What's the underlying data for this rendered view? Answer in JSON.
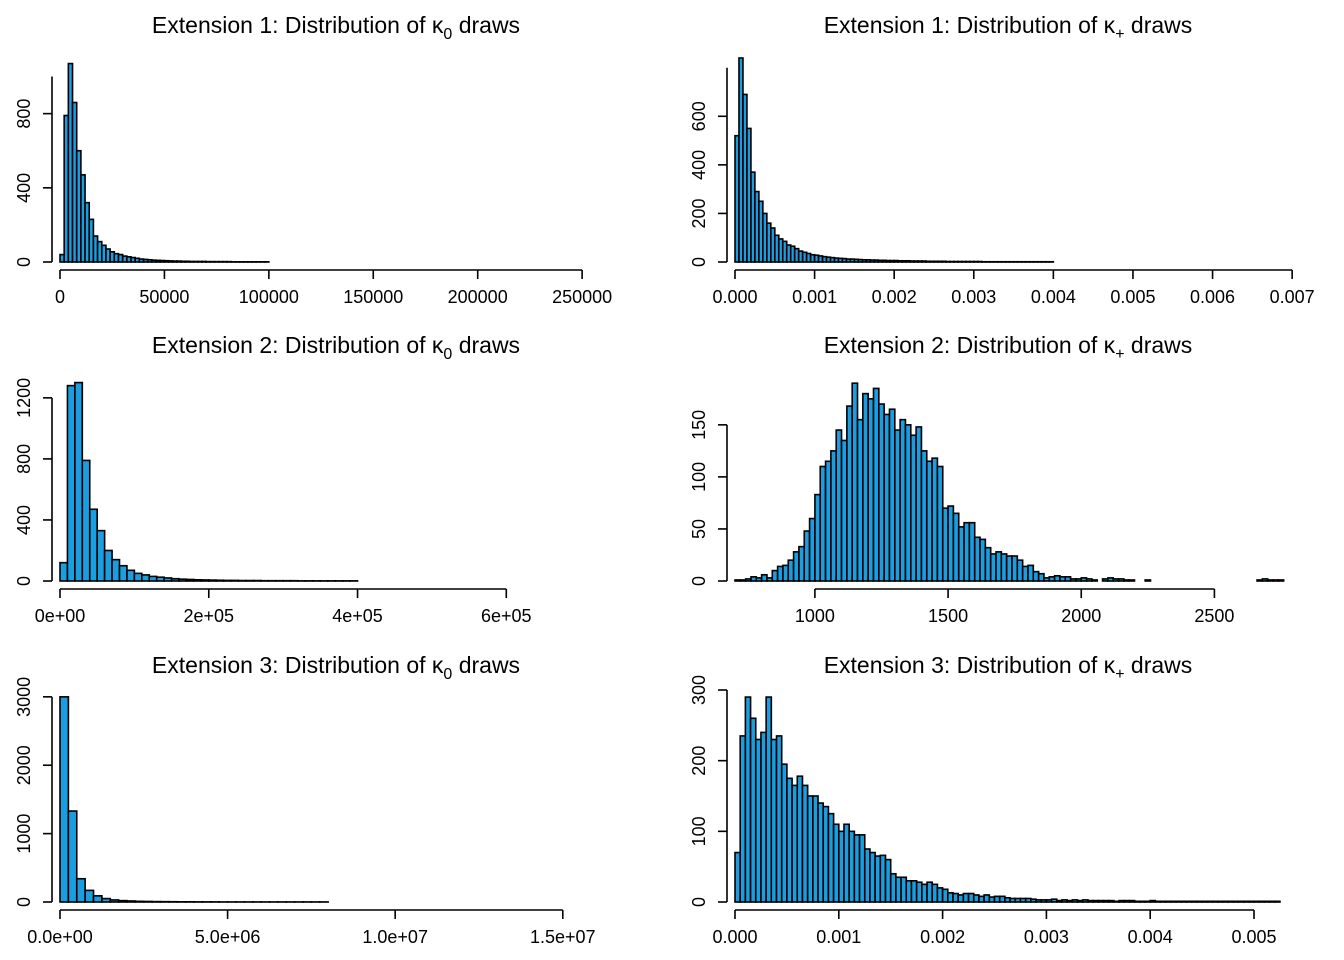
{
  "chart_data": [
    {
      "type": "bar",
      "title": "Extension 1: Distribution of κ0 draws",
      "title_main": "Extension 1: Distribution of κ",
      "title_sub": "0",
      "title_tail": " draws",
      "xlim": [
        0,
        260000
      ],
      "ylim": [
        0,
        1100
      ],
      "bin_start": 0,
      "bin_width": 2000,
      "counts": [
        40,
        790,
        1070,
        860,
        600,
        470,
        320,
        230,
        140,
        110,
        90,
        70,
        55,
        45,
        40,
        32,
        28,
        24,
        20,
        16,
        14,
        12,
        10,
        9,
        8,
        7,
        6,
        5,
        5,
        4,
        4,
        3,
        3,
        3,
        3,
        2,
        2,
        2,
        2,
        2,
        2,
        1,
        1,
        1,
        1,
        1,
        1,
        1,
        1,
        1
      ],
      "xticks": [
        0,
        50000,
        100000,
        150000,
        200000,
        250000
      ],
      "xtick_labels": [
        "0",
        "50000",
        "100000",
        "150000",
        "200000",
        "250000"
      ],
      "yticks": [
        0,
        400,
        800
      ],
      "ytick_labels": [
        "0",
        "400",
        "800"
      ],
      "yaxis_top": 1000
    },
    {
      "type": "bar",
      "title": "Extension 1: Distribution of κ+ draws",
      "title_main": "Extension 1: Distribution of κ",
      "title_sub": "+",
      "title_tail": " draws",
      "xlim": [
        0,
        0.00686
      ],
      "ylim": [
        0,
        840
      ],
      "bin_start": 0,
      "bin_width": 5e-05,
      "counts": [
        520,
        840,
        690,
        550,
        370,
        290,
        250,
        200,
        160,
        140,
        110,
        95,
        85,
        70,
        65,
        55,
        45,
        40,
        35,
        30,
        28,
        25,
        22,
        20,
        18,
        16,
        15,
        14,
        12,
        12,
        11,
        10,
        9,
        9,
        8,
        8,
        7,
        7,
        6,
        6,
        6,
        5,
        5,
        5,
        4,
        4,
        4,
        4,
        3,
        3,
        3,
        3,
        3,
        2,
        2,
        2,
        2,
        2,
        2,
        2,
        2,
        2,
        1,
        1,
        1,
        1,
        1,
        1,
        1,
        1,
        1,
        1,
        1,
        1,
        1,
        1,
        1,
        1,
        1,
        1
      ],
      "xticks": [
        0,
        0.001,
        0.002,
        0.003,
        0.004,
        0.005,
        0.006,
        0.007
      ],
      "xtick_labels": [
        "0.000",
        "0.001",
        "0.002",
        "0.003",
        "0.004",
        "0.005",
        "0.006",
        "0.007"
      ],
      "yticks": [
        0,
        200,
        400,
        600
      ],
      "ytick_labels": [
        "0",
        "200",
        "400",
        "600"
      ],
      "yaxis_top": 800
    },
    {
      "type": "bar",
      "title": "Extension 2: Distribution of κ0 draws",
      "title_main": "Extension 2: Distribution of κ",
      "title_sub": "0",
      "title_tail": " draws",
      "xlim": [
        0,
        730000
      ],
      "ylim": [
        0,
        1330
      ],
      "bin_start": 0,
      "bin_width": 10000,
      "counts": [
        120,
        1280,
        1300,
        790,
        470,
        330,
        200,
        140,
        100,
        70,
        50,
        40,
        30,
        25,
        20,
        15,
        12,
        10,
        8,
        7,
        6,
        5,
        4,
        4,
        3,
        3,
        3,
        2,
        2,
        2,
        2,
        2,
        1,
        1,
        1,
        1,
        1,
        1,
        1,
        1
      ],
      "xticks": [
        0,
        200000,
        400000,
        600000
      ],
      "xtick_labels": [
        "0e+00",
        "2e+05",
        "4e+05",
        "6e+05"
      ],
      "yticks": [
        0,
        400,
        800,
        1200
      ],
      "ytick_labels": [
        "0",
        "400",
        "800",
        "1200"
      ],
      "yaxis_top": 1200
    },
    {
      "type": "bar",
      "title": "Extension 2: Distribution of κ+ draws",
      "title_main": "Extension 2: Distribution of κ",
      "title_sub": "+",
      "title_tail": " draws",
      "xlim": [
        700,
        2750
      ],
      "ylim": [
        0,
        195
      ],
      "bin_start": 700,
      "bin_width": 20,
      "counts": [
        1,
        1,
        2,
        4,
        3,
        6,
        3,
        10,
        14,
        15,
        20,
        28,
        33,
        48,
        60,
        83,
        110,
        115,
        125,
        145,
        135,
        168,
        190,
        155,
        180,
        175,
        185,
        170,
        160,
        165,
        145,
        155,
        150,
        140,
        148,
        125,
        115,
        118,
        110,
        70,
        72,
        65,
        52,
        56,
        56,
        42,
        40,
        32,
        26,
        28,
        26,
        24,
        24,
        20,
        14,
        15,
        9,
        7,
        3,
        4,
        5,
        4,
        4,
        2,
        2,
        3,
        2,
        1,
        0,
        2,
        3,
        2,
        2,
        1,
        1,
        0,
        0,
        1,
        0,
        0,
        0,
        0,
        0,
        0,
        0,
        0,
        0,
        0,
        0,
        0,
        0,
        0,
        0,
        0,
        0,
        0,
        0,
        0,
        1,
        2,
        1,
        1,
        1
      ],
      "xticks": [
        1000,
        1500,
        2000,
        2500
      ],
      "xtick_labels": [
        "1000",
        "1500",
        "2000",
        "2500"
      ],
      "yticks": [
        0,
        50,
        100,
        150
      ],
      "ytick_labels": [
        "0",
        "50",
        "100",
        "150"
      ],
      "yaxis_top": 150
    },
    {
      "type": "bar",
      "title": "Extension 3: Distribution of κ0 draws",
      "title_main": "Extension 3: Distribution of κ",
      "title_sub": "0",
      "title_tail": " draws",
      "xlim": [
        0,
        16200000
      ],
      "ylim": [
        0,
        3100
      ],
      "bin_start": 0,
      "bin_width": 250000,
      "counts": [
        3000,
        1330,
        340,
        170,
        90,
        50,
        30,
        20,
        15,
        10,
        8,
        6,
        5,
        4,
        3,
        3,
        2,
        2,
        2,
        1,
        1,
        1,
        1,
        1,
        1,
        1,
        1,
        1,
        1,
        1,
        1,
        1
      ],
      "xticks": [
        0,
        5000000,
        10000000,
        15000000
      ],
      "xtick_labels": [
        "0.0e+00",
        "5.0e+06",
        "1.0e+07",
        "1.5e+07"
      ],
      "yticks": [
        0,
        1000,
        2000,
        3000
      ],
      "ytick_labels": [
        "0",
        "1000",
        "2000",
        "3000"
      ],
      "yaxis_top": 3000
    },
    {
      "type": "bar",
      "title": "Extension 3: Distribution of κ+ draws",
      "title_main": "Extension 3: Distribution of κ",
      "title_sub": "+",
      "title_tail": " draws",
      "xlim": [
        0,
        0.00526
      ],
      "ylim": [
        0,
        300
      ],
      "bin_start": 0,
      "bin_width": 5e-05,
      "counts": [
        70,
        235,
        290,
        260,
        230,
        240,
        290,
        230,
        235,
        195,
        175,
        165,
        178,
        165,
        150,
        150,
        140,
        135,
        125,
        110,
        100,
        110,
        100,
        95,
        95,
        75,
        70,
        65,
        66,
        60,
        40,
        35,
        35,
        30,
        30,
        28,
        25,
        28,
        25,
        20,
        18,
        13,
        12,
        10,
        12,
        12,
        10,
        8,
        10,
        7,
        8,
        8,
        6,
        5,
        5,
        5,
        5,
        4,
        3,
        3,
        3,
        4,
        2,
        3,
        2,
        3,
        2,
        3,
        2,
        2,
        2,
        2,
        2,
        1,
        2,
        2,
        2,
        1,
        1,
        1,
        2,
        1,
        1,
        1,
        1,
        1,
        1,
        1,
        1,
        1,
        1,
        1,
        1,
        1,
        1,
        1,
        1,
        1,
        1,
        1,
        1,
        1,
        1,
        1,
        1
      ],
      "xticks": [
        0,
        0.001,
        0.002,
        0.003,
        0.004,
        0.005
      ],
      "xtick_labels": [
        "0.000",
        "0.001",
        "0.002",
        "0.003",
        "0.004",
        "0.005"
      ],
      "yticks": [
        0,
        100,
        200,
        300
      ],
      "ytick_labels": [
        "0",
        "100",
        "200",
        "300"
      ],
      "yaxis_top": 300
    }
  ]
}
